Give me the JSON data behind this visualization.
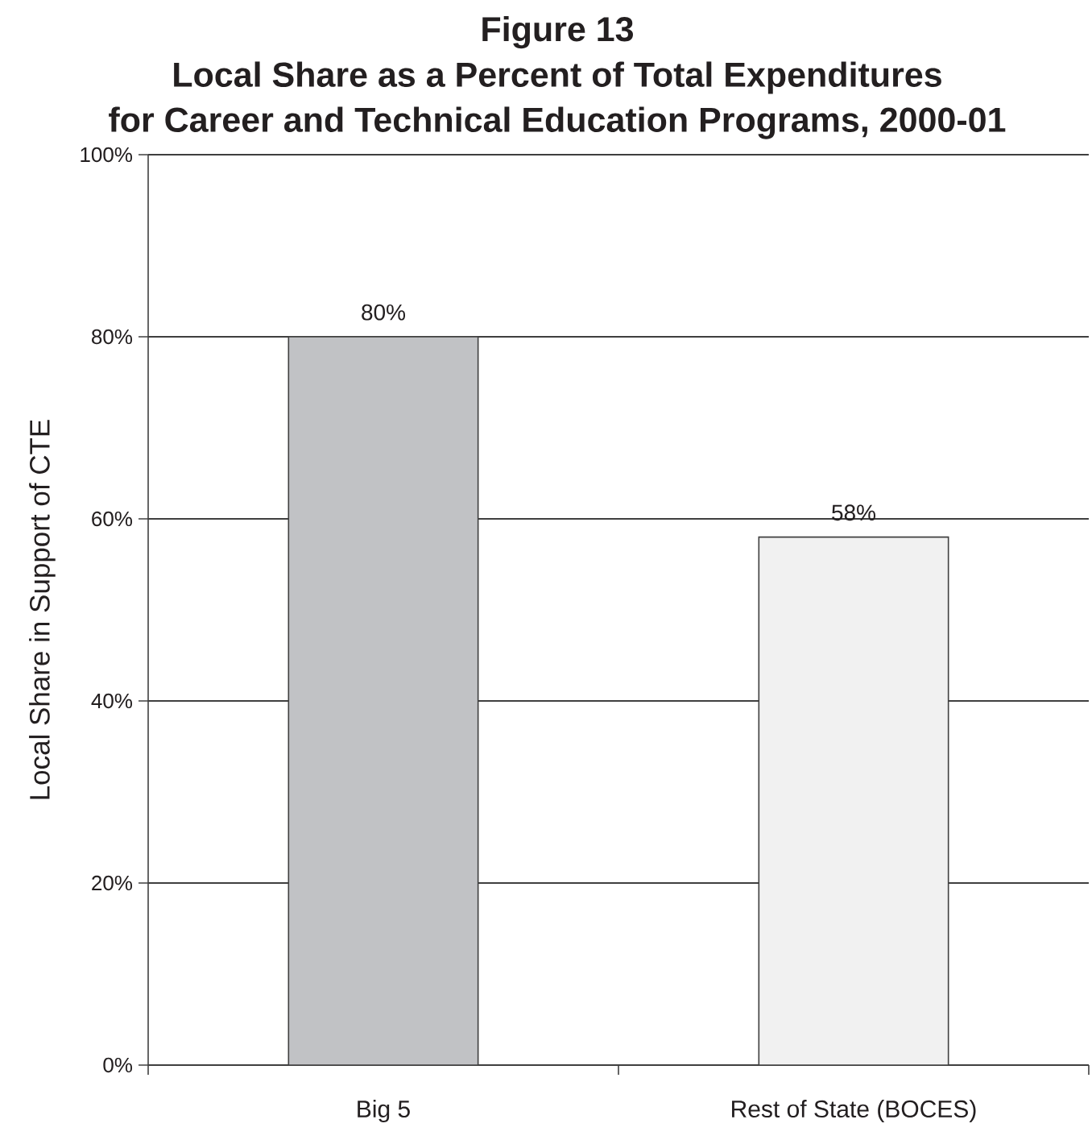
{
  "chart_data": {
    "type": "bar",
    "title": "Figure 13",
    "subtitle": "Local Share as a Percent of Total Expenditures for Career and Technical Education Programs, 2000-01",
    "ylabel": "Local Share in Support of CTE",
    "categories": [
      "Big 5",
      "Rest of State (BOCES)"
    ],
    "values": [
      80,
      58
    ],
    "colors": [
      "#c1c2c5",
      "#f1f1f1"
    ],
    "value_labels": [
      "80%",
      "58%"
    ],
    "ylim": [
      0,
      100
    ],
    "yticks": [
      {
        "value": 0,
        "label": "0%"
      },
      {
        "value": 20,
        "label": "20%"
      },
      {
        "value": 40,
        "label": "40%"
      },
      {
        "value": 60,
        "label": "60%"
      },
      {
        "value": 80,
        "label": "80%"
      },
      {
        "value": 100,
        "label": "100%"
      }
    ],
    "grid": "y"
  }
}
